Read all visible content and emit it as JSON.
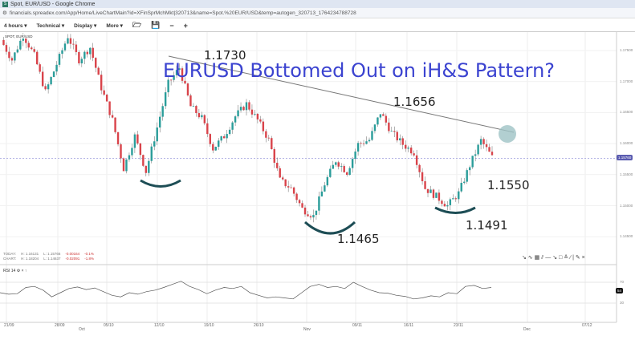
{
  "window": {
    "title": "Spot, EUR/USD - Google Chrome",
    "favicon": "S",
    "url": "financials.spreadex.com/App/Home/LiveChartMain?id=XFinSprMchMkt|320713&name=Spot.%20EUR/USD&temp=autogen_320713_1764234788728"
  },
  "toolbar": {
    "interval": "4 hours ▾",
    "technical": "Technical ▾",
    "display": "Display ▾",
    "more": "More ▾",
    "open_icon": "folder-icon",
    "save_icon": "save-icon",
    "zoom_out": "−",
    "zoom_in": "+"
  },
  "chart": {
    "instrument_label": "SPOT, EUR/USD",
    "headline": "EURUSD Bottomed Out on iH&S Pattern?",
    "annotations": {
      "a1730": "1.1730",
      "a1656": "1.1656",
      "a1550": "1.1550",
      "a1465": "1.1465",
      "a1491": "1.1491"
    },
    "y_ticks": [
      "1.17500",
      "1.17000",
      "1.16500",
      "1.16000",
      "1.15500",
      "1.15000",
      "1.14500"
    ],
    "current_price": "1.15760",
    "colors": {
      "up": "#2a9d9a",
      "down": "#d9434a",
      "headline": "#3b43d0",
      "shoulder_arc": "#1d4d55",
      "trendline": "#777777",
      "target_circle": "#9fc3c6"
    },
    "closes": [
      1.1767,
      1.1735,
      1.1775,
      1.1742,
      1.1683,
      1.1728,
      1.1773,
      1.1735,
      1.1755,
      1.169,
      1.1638,
      1.156,
      1.1612,
      1.1555,
      1.1626,
      1.1697,
      1.1722,
      1.166,
      1.1641,
      1.1592,
      1.1612,
      1.1644,
      1.1664,
      1.1638,
      1.1606,
      1.1541,
      1.1528,
      1.1495,
      1.1483,
      1.1535,
      1.1573,
      1.1554,
      1.1599,
      1.1606,
      1.165,
      1.1618,
      1.1599,
      1.1586,
      1.1528,
      1.1515,
      1.15,
      1.152,
      1.1565,
      1.1605,
      1.1578
    ]
  },
  "stats": {
    "today": {
      "label": "TODAY:",
      "high": "H: 1.16131",
      "low": "L: 1.15766",
      "change": "-0.00164",
      "pct": "-0.1%"
    },
    "chart": {
      "label": "CHART:",
      "high": "H: 1.18204",
      "low": "L: 1.14637",
      "change": "-0.02091",
      "pct": "-1.8%"
    }
  },
  "rsi": {
    "label": "RSI 14",
    "levels": [
      "70",
      "30"
    ],
    "current": "54",
    "values": [
      50,
      47,
      48,
      60,
      62,
      55,
      42,
      50,
      58,
      61,
      56,
      59,
      52,
      45,
      42,
      50,
      47,
      52,
      55,
      60,
      66,
      72,
      62,
      56,
      48,
      55,
      60,
      58,
      62,
      50,
      45,
      40,
      42,
      40,
      38,
      50,
      62,
      66,
      60,
      62,
      58,
      70,
      62,
      55,
      50,
      49,
      45,
      43,
      38,
      40,
      44,
      42,
      50,
      48,
      62,
      64,
      58,
      60
    ]
  },
  "dates": [
    "21/09",
    "28/09",
    "05/10",
    "12/10",
    "19/10",
    "26/10",
    "09/11",
    "16/11",
    "23/11",
    "07/12"
  ],
  "months": [
    "Oct",
    "Nov",
    "Dec"
  ],
  "drawing_tools": "↘ ∿ ▦ ⫽ — ↘ □ ≙ ∕ | ✎ ×"
}
